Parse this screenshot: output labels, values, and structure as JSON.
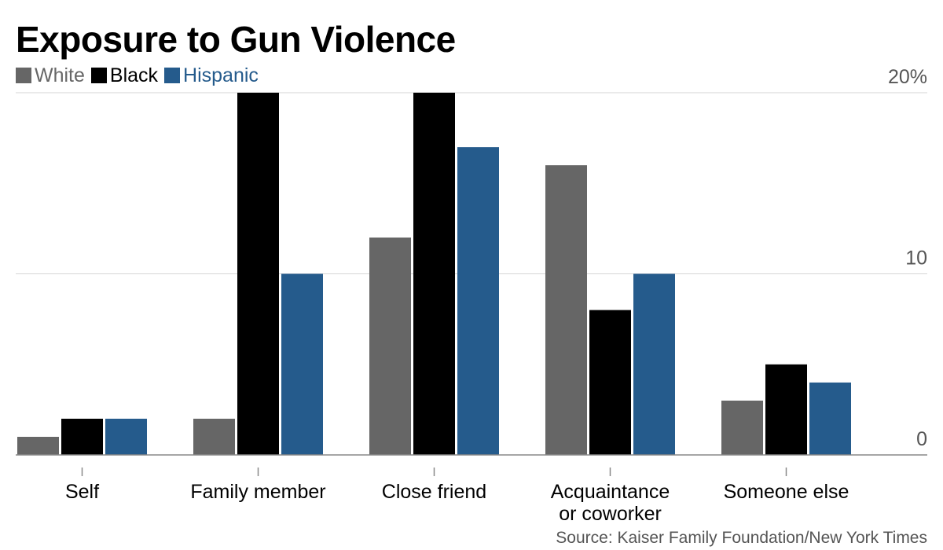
{
  "page": {
    "title": "Exposure to Gun Violence",
    "source": "Source: Kaiser Family Foundation/New York Times"
  },
  "chart_data": {
    "type": "bar",
    "title": "Exposure to Gun Violence",
    "xlabel": "",
    "ylabel": "",
    "categories": [
      [
        "Self"
      ],
      [
        "Family member"
      ],
      [
        "Close friend"
      ],
      [
        "Acquaintance",
        "or coworker"
      ],
      [
        "Someone else"
      ]
    ],
    "series": [
      {
        "name": "White",
        "color": "#666666",
        "values": [
          1,
          2,
          12,
          16,
          3
        ]
      },
      {
        "name": "Black",
        "color": "#000000",
        "values": [
          2,
          20,
          20,
          8,
          5
        ]
      },
      {
        "name": "Hispanic",
        "color": "#255b8c",
        "values": [
          2,
          10,
          17,
          10,
          4
        ]
      }
    ],
    "ylim": [
      0,
      20
    ],
    "yticks": [
      {
        "value": 0,
        "label": "0"
      },
      {
        "value": 10,
        "label": "10"
      },
      {
        "value": 20,
        "label": "20%"
      }
    ],
    "grid": true,
    "legend_position": "top-left",
    "y_axis_position": "right"
  }
}
